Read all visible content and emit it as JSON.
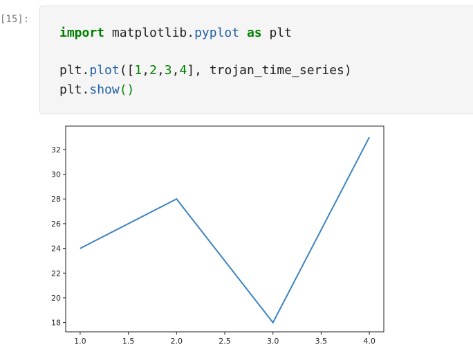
{
  "cell": {
    "prompt": "[15]:",
    "code": {
      "line1": {
        "kw_import": "import",
        "module_pre": " matplotlib.",
        "module_sub": "pyplot",
        "space1": " ",
        "kw_as": "as",
        "alias": " plt"
      },
      "line2": {
        "obj": "plt.",
        "fn": "plot",
        "open": "([",
        "n1": "1",
        "c1": ",",
        "n2": "2",
        "c2": ",",
        "n3": "3",
        "c3": ",",
        "n4": "4",
        "rest": "], trojan_time_series)"
      },
      "line3": {
        "obj": "plt.",
        "fn": "show",
        "parens": "()"
      }
    }
  },
  "chart_data": {
    "type": "line",
    "x": [
      1,
      2,
      3,
      4
    ],
    "series": [
      {
        "values": [
          24,
          28,
          18,
          33
        ],
        "color": "#3c82c0"
      }
    ],
    "xlim": [
      0.85,
      4.15
    ],
    "ylim": [
      17.25,
      33.9
    ],
    "xticks": [
      "1.0",
      "1.5",
      "2.0",
      "2.5",
      "3.0",
      "3.5",
      "4.0"
    ],
    "xtick_values": [
      1.0,
      1.5,
      2.0,
      2.5,
      3.0,
      3.5,
      4.0
    ],
    "yticks": [
      "18",
      "20",
      "22",
      "24",
      "26",
      "28",
      "30",
      "32"
    ],
    "ytick_values": [
      18,
      20,
      22,
      24,
      26,
      28,
      30,
      32
    ],
    "title": "",
    "xlabel": "",
    "ylabel": "",
    "grid": false
  }
}
